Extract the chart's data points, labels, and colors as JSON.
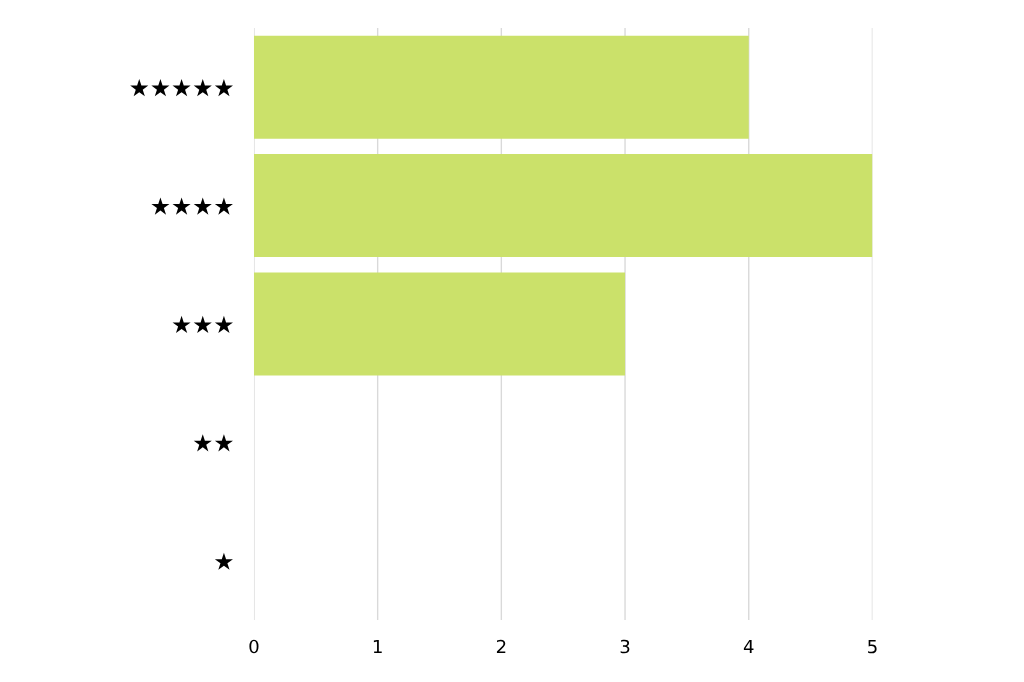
{
  "chart_data": {
    "type": "bar",
    "orientation": "horizontal",
    "categories": [
      "★★★★★",
      "★★★★",
      "★★★",
      "★★",
      "★"
    ],
    "values": [
      4,
      5,
      3,
      0,
      0
    ],
    "color": "#cbe16a",
    "xlim": [
      0,
      5
    ],
    "xticks": [
      0,
      1,
      2,
      3,
      4,
      5
    ],
    "grid": "x",
    "legend": false
  }
}
